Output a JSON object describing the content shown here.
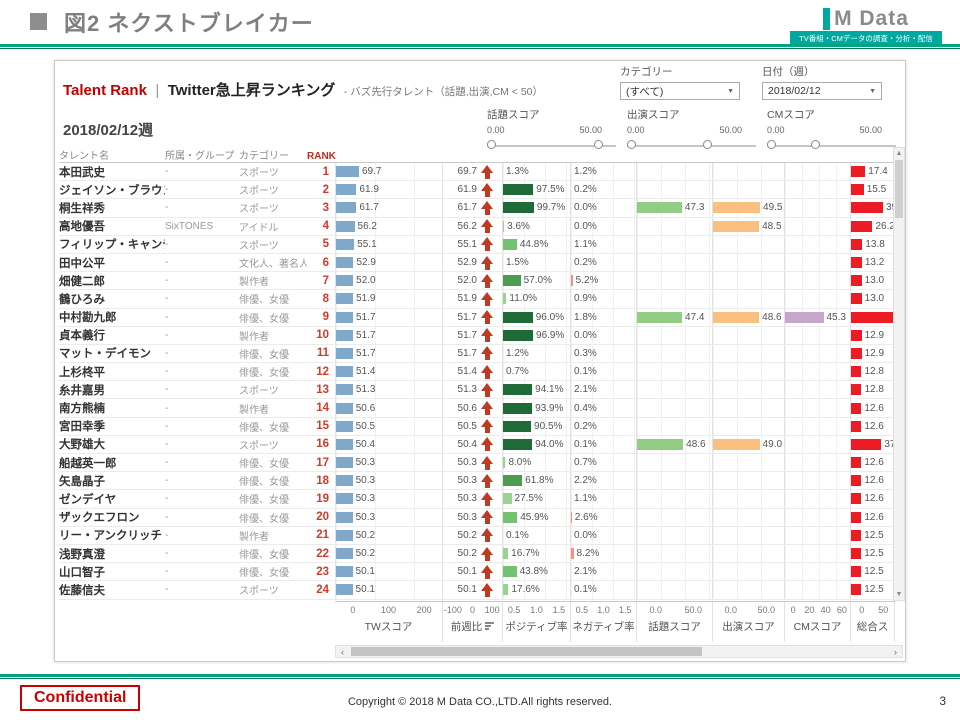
{
  "slide": {
    "header_title": "図2  ネクストブレイカー",
    "logo": {
      "text": "M Data",
      "tagline": "TV番組・CMデータの調査・分析・配信"
    },
    "footer": {
      "confidential": "Confidential",
      "copyright": "Copyright © 2018 M Data CO.,LTD.All rights reserved.",
      "page": "3"
    }
  },
  "dashboard": {
    "title_main": "Talent Rank",
    "title_sep": "|",
    "title_sub": "Twitter急上昇ランキング",
    "title_note": "- バズ先行タレント（話題,出演,CM < 50）",
    "week_label": "2018/02/12週",
    "filters": [
      {
        "label": "カテゴリー",
        "value": "(すべて)"
      },
      {
        "label": "日付（週）",
        "value": "2018/02/12"
      }
    ],
    "sliders": [
      {
        "label": "話題スコア",
        "min": "0.00",
        "max": "50.00",
        "right_pct": 87
      },
      {
        "label": "出演スコア",
        "min": "0.00",
        "max": "50.00",
        "right_pct": 63
      },
      {
        "label": "CMスコア",
        "min": "0.00",
        "max": "50.00",
        "right_pct": 38
      }
    ]
  },
  "table": {
    "headers": {
      "name": "タレント名",
      "group": "所属・グループ",
      "category": "カテゴリー",
      "rank": "RANK"
    },
    "axes": [
      {
        "col": "tw",
        "title": "TWスコア",
        "ticks": [
          "0",
          "100",
          "200"
        ],
        "sort": false
      },
      {
        "col": "prev",
        "title": "前週比",
        "ticks": [
          "-100",
          "0",
          "100"
        ],
        "sort": true
      },
      {
        "col": "pos",
        "title": "ポジティブ率",
        "ticks": [
          "0.5",
          "1.0",
          "1.5"
        ],
        "sort": false
      },
      {
        "col": "neg",
        "title": "ネガティブ率",
        "ticks": [
          "0.5",
          "1.0",
          "1.5"
        ],
        "sort": false
      },
      {
        "col": "topic",
        "title": "話題スコア",
        "ticks": [
          "0.0",
          "50.0"
        ],
        "sort": false
      },
      {
        "col": "appear",
        "title": "出演スコア",
        "ticks": [
          "0.0",
          "50.0"
        ],
        "sort": false
      },
      {
        "col": "cm",
        "title": "CMスコア",
        "ticks": [
          "0",
          "20",
          "40",
          "60"
        ],
        "sort": false
      },
      {
        "col": "total",
        "title": "総合ス",
        "ticks": [
          "0",
          "50"
        ],
        "sort": false
      }
    ],
    "rows": [
      {
        "rank": 1,
        "name": "本田武史",
        "group": "-",
        "category": "スポーツ",
        "tw": 69.7,
        "prev": 69.7,
        "pos": 1.3,
        "neg": 1.2,
        "topic": null,
        "appear": null,
        "cm": null,
        "total": 17.4,
        "total_label": "17.4"
      },
      {
        "rank": 2,
        "name": "ジェイソン・ブラウン",
        "group": "-",
        "category": "スポーツ",
        "tw": 61.9,
        "prev": 61.9,
        "pos": 97.5,
        "neg": 0.2,
        "topic": null,
        "appear": null,
        "cm": null,
        "total": 15.5,
        "total_label": "15.5"
      },
      {
        "rank": 3,
        "name": "桐生祥秀",
        "group": "-",
        "category": "スポーツ",
        "tw": 61.7,
        "prev": 61.7,
        "pos": 99.7,
        "neg": 0.0,
        "topic": 47.3,
        "appear": 49.5,
        "cm": null,
        "total": 39.0,
        "total_label": "39"
      },
      {
        "rank": 4,
        "name": "高地優吾",
        "group": "SixTONES",
        "category": "アイドル",
        "tw": 56.2,
        "prev": 56.2,
        "pos": 3.6,
        "neg": 0.0,
        "topic": null,
        "appear": 48.5,
        "cm": null,
        "total": 26.2,
        "total_label": "26.2"
      },
      {
        "rank": 5,
        "name": "フィリップ・キャンデロロ",
        "group": "-",
        "category": "スポーツ",
        "tw": 55.1,
        "prev": 55.1,
        "pos": 44.8,
        "neg": 1.1,
        "topic": null,
        "appear": null,
        "cm": null,
        "total": 13.8,
        "total_label": "13.8"
      },
      {
        "rank": 6,
        "name": "田中公平",
        "group": "-",
        "category": "文化人、著名人",
        "tw": 52.9,
        "prev": 52.9,
        "pos": 1.5,
        "neg": 0.2,
        "topic": null,
        "appear": null,
        "cm": null,
        "total": 13.2,
        "total_label": "13.2"
      },
      {
        "rank": 7,
        "name": "畑健二郎",
        "group": "-",
        "category": "製作者",
        "tw": 52.0,
        "prev": 52.0,
        "pos": 57.0,
        "neg": 5.2,
        "topic": null,
        "appear": null,
        "cm": null,
        "total": 13.0,
        "total_label": "13.0"
      },
      {
        "rank": 8,
        "name": "鶴ひろみ",
        "group": "-",
        "category": "俳優、女優",
        "tw": 51.9,
        "prev": 51.9,
        "pos": 11.0,
        "neg": 0.9,
        "topic": null,
        "appear": null,
        "cm": null,
        "total": 13.0,
        "total_label": "13.0"
      },
      {
        "rank": 9,
        "name": "中村勘九郎",
        "group": "-",
        "category": "俳優、女優",
        "tw": 51.7,
        "prev": 51.7,
        "pos": 96.0,
        "neg": 1.8,
        "topic": 47.4,
        "appear": 48.6,
        "cm": 45.3,
        "total": 55.0,
        "total_label": ""
      },
      {
        "rank": 10,
        "name": "貞本義行",
        "group": "-",
        "category": "製作者",
        "tw": 51.7,
        "prev": 51.7,
        "pos": 96.9,
        "neg": 0.0,
        "topic": null,
        "appear": null,
        "cm": null,
        "total": 12.9,
        "total_label": "12.9"
      },
      {
        "rank": 11,
        "name": "マット・デイモン",
        "group": "-",
        "category": "俳優、女優",
        "tw": 51.7,
        "prev": 51.7,
        "pos": 1.2,
        "neg": 0.3,
        "topic": null,
        "appear": null,
        "cm": null,
        "total": 12.9,
        "total_label": "12.9"
      },
      {
        "rank": 12,
        "name": "上杉柊平",
        "group": "-",
        "category": "俳優、女優",
        "tw": 51.4,
        "prev": 51.4,
        "pos": 0.7,
        "neg": 0.1,
        "topic": null,
        "appear": null,
        "cm": null,
        "total": 12.8,
        "total_label": "12.8"
      },
      {
        "rank": 13,
        "name": "糸井嘉男",
        "group": "-",
        "category": "スポーツ",
        "tw": 51.3,
        "prev": 51.3,
        "pos": 94.1,
        "neg": 2.1,
        "topic": null,
        "appear": null,
        "cm": null,
        "total": 12.8,
        "total_label": "12.8"
      },
      {
        "rank": 14,
        "name": "南方熊楠",
        "group": "-",
        "category": "製作者",
        "tw": 50.6,
        "prev": 50.6,
        "pos": 93.9,
        "neg": 0.4,
        "topic": null,
        "appear": null,
        "cm": null,
        "total": 12.6,
        "total_label": "12.6"
      },
      {
        "rank": 15,
        "name": "宮田幸季",
        "group": "-",
        "category": "俳優、女優",
        "tw": 50.5,
        "prev": 50.5,
        "pos": 90.5,
        "neg": 0.2,
        "topic": null,
        "appear": null,
        "cm": null,
        "total": 12.6,
        "total_label": "12.6"
      },
      {
        "rank": 16,
        "name": "大野雄大",
        "group": "-",
        "category": "スポーツ",
        "tw": 50.4,
        "prev": 50.4,
        "pos": 94.0,
        "neg": 0.1,
        "topic": 48.6,
        "appear": 49.0,
        "cm": null,
        "total": 37.0,
        "total_label": "37"
      },
      {
        "rank": 17,
        "name": "船越英一郎",
        "group": "-",
        "category": "俳優、女優",
        "tw": 50.3,
        "prev": 50.3,
        "pos": 8.0,
        "neg": 0.7,
        "topic": null,
        "appear": null,
        "cm": null,
        "total": 12.6,
        "total_label": "12.6"
      },
      {
        "rank": 18,
        "name": "矢島晶子",
        "group": "-",
        "category": "俳優、女優",
        "tw": 50.3,
        "prev": 50.3,
        "pos": 61.8,
        "neg": 2.2,
        "topic": null,
        "appear": null,
        "cm": null,
        "total": 12.6,
        "total_label": "12.6"
      },
      {
        "rank": 19,
        "name": "ゼンデイヤ",
        "group": "-",
        "category": "俳優、女優",
        "tw": 50.3,
        "prev": 50.3,
        "pos": 27.5,
        "neg": 1.1,
        "topic": null,
        "appear": null,
        "cm": null,
        "total": 12.6,
        "total_label": "12.6"
      },
      {
        "rank": 20,
        "name": "ザックエフロン",
        "group": "-",
        "category": "俳優、女優",
        "tw": 50.3,
        "prev": 50.3,
        "pos": 45.9,
        "neg": 2.6,
        "topic": null,
        "appear": null,
        "cm": null,
        "total": 12.6,
        "total_label": "12.6"
      },
      {
        "rank": 21,
        "name": "リー・アンクリッチ",
        "group": "-",
        "category": "製作者",
        "tw": 50.2,
        "prev": 50.2,
        "pos": 0.1,
        "neg": 0.0,
        "topic": null,
        "appear": null,
        "cm": null,
        "total": 12.5,
        "total_label": "12.5"
      },
      {
        "rank": 22,
        "name": "浅野真澄",
        "group": "-",
        "category": "俳優、女優",
        "tw": 50.2,
        "prev": 50.2,
        "pos": 16.7,
        "neg": 8.2,
        "topic": null,
        "appear": null,
        "cm": null,
        "total": 12.5,
        "total_label": "12.5"
      },
      {
        "rank": 23,
        "name": "山口智子",
        "group": "-",
        "category": "俳優、女優",
        "tw": 50.1,
        "prev": 50.1,
        "pos": 43.8,
        "neg": 2.1,
        "topic": null,
        "appear": null,
        "cm": null,
        "total": 12.5,
        "total_label": "12.5"
      },
      {
        "rank": 24,
        "name": "佐藤信夫",
        "group": "-",
        "category": "スポーツ",
        "tw": 50.1,
        "prev": 50.1,
        "pos": 17.6,
        "neg": 0.1,
        "topic": null,
        "appear": null,
        "cm": null,
        "total": 12.5,
        "total_label": "12.5"
      }
    ]
  },
  "colors": {
    "teal": "#00a57d",
    "logo_teal": "#00a8a0",
    "title_red": "#c00000",
    "rank_red": "#d23b2a",
    "tw_bar": "#7fa8cb",
    "arrow_red": "#bd3a23",
    "pos_dark": "#1f6b38",
    "pos_mid": "#4b9e51",
    "pos_midlight": "#74c172",
    "pos_light": "#97d48e",
    "neg_bar": "#ef9384",
    "topic_bar": "#93cc84",
    "appear_bar": "#fbbf81",
    "cm_bar": "#c6a6ca",
    "total_bar": "#ec1c24"
  }
}
